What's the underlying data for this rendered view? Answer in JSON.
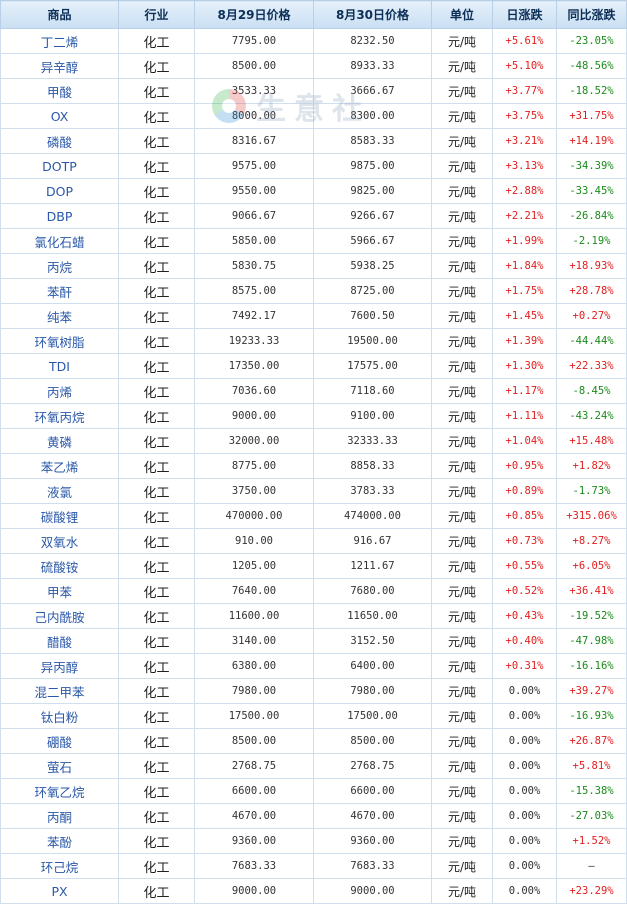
{
  "headers": [
    "商品",
    "行业",
    "8月29日价格",
    "8月30日价格",
    "单位",
    "日涨跌",
    "同比涨跌"
  ],
  "watermark": "生意社",
  "rows": [
    {
      "name": "丁二烯",
      "industry": "化工",
      "p1": "7795.00",
      "p2": "8232.50",
      "unit": "元/吨",
      "daily": "+5.61%",
      "yoy": "-23.05%"
    },
    {
      "name": "异辛醇",
      "industry": "化工",
      "p1": "8500.00",
      "p2": "8933.33",
      "unit": "元/吨",
      "daily": "+5.10%",
      "yoy": "-48.56%"
    },
    {
      "name": "甲酸",
      "industry": "化工",
      "p1": "3533.33",
      "p2": "3666.67",
      "unit": "元/吨",
      "daily": "+3.77%",
      "yoy": "-18.52%"
    },
    {
      "name": "OX",
      "industry": "化工",
      "p1": "8000.00",
      "p2": "8300.00",
      "unit": "元/吨",
      "daily": "+3.75%",
      "yoy": "+31.75%"
    },
    {
      "name": "磷酸",
      "industry": "化工",
      "p1": "8316.67",
      "p2": "8583.33",
      "unit": "元/吨",
      "daily": "+3.21%",
      "yoy": "+14.19%"
    },
    {
      "name": "DOTP",
      "industry": "化工",
      "p1": "9575.00",
      "p2": "9875.00",
      "unit": "元/吨",
      "daily": "+3.13%",
      "yoy": "-34.39%"
    },
    {
      "name": "DOP",
      "industry": "化工",
      "p1": "9550.00",
      "p2": "9825.00",
      "unit": "元/吨",
      "daily": "+2.88%",
      "yoy": "-33.45%"
    },
    {
      "name": "DBP",
      "industry": "化工",
      "p1": "9066.67",
      "p2": "9266.67",
      "unit": "元/吨",
      "daily": "+2.21%",
      "yoy": "-26.84%"
    },
    {
      "name": "氯化石蜡",
      "industry": "化工",
      "p1": "5850.00",
      "p2": "5966.67",
      "unit": "元/吨",
      "daily": "+1.99%",
      "yoy": "-2.19%"
    },
    {
      "name": "丙烷",
      "industry": "化工",
      "p1": "5830.75",
      "p2": "5938.25",
      "unit": "元/吨",
      "daily": "+1.84%",
      "yoy": "+18.93%"
    },
    {
      "name": "苯酐",
      "industry": "化工",
      "p1": "8575.00",
      "p2": "8725.00",
      "unit": "元/吨",
      "daily": "+1.75%",
      "yoy": "+28.78%"
    },
    {
      "name": "纯苯",
      "industry": "化工",
      "p1": "7492.17",
      "p2": "7600.50",
      "unit": "元/吨",
      "daily": "+1.45%",
      "yoy": "+0.27%"
    },
    {
      "name": "环氧树脂",
      "industry": "化工",
      "p1": "19233.33",
      "p2": "19500.00",
      "unit": "元/吨",
      "daily": "+1.39%",
      "yoy": "-44.44%"
    },
    {
      "name": "TDI",
      "industry": "化工",
      "p1": "17350.00",
      "p2": "17575.00",
      "unit": "元/吨",
      "daily": "+1.30%",
      "yoy": "+22.33%"
    },
    {
      "name": "丙烯",
      "industry": "化工",
      "p1": "7036.60",
      "p2": "7118.60",
      "unit": "元/吨",
      "daily": "+1.17%",
      "yoy": "-8.45%"
    },
    {
      "name": "环氧丙烷",
      "industry": "化工",
      "p1": "9000.00",
      "p2": "9100.00",
      "unit": "元/吨",
      "daily": "+1.11%",
      "yoy": "-43.24%"
    },
    {
      "name": "黄磷",
      "industry": "化工",
      "p1": "32000.00",
      "p2": "32333.33",
      "unit": "元/吨",
      "daily": "+1.04%",
      "yoy": "+15.48%"
    },
    {
      "name": "苯乙烯",
      "industry": "化工",
      "p1": "8775.00",
      "p2": "8858.33",
      "unit": "元/吨",
      "daily": "+0.95%",
      "yoy": "+1.82%"
    },
    {
      "name": "液氯",
      "industry": "化工",
      "p1": "3750.00",
      "p2": "3783.33",
      "unit": "元/吨",
      "daily": "+0.89%",
      "yoy": "-1.73%"
    },
    {
      "name": "碳酸锂",
      "industry": "化工",
      "p1": "470000.00",
      "p2": "474000.00",
      "unit": "元/吨",
      "daily": "+0.85%",
      "yoy": "+315.06%"
    },
    {
      "name": "双氧水",
      "industry": "化工",
      "p1": "910.00",
      "p2": "916.67",
      "unit": "元/吨",
      "daily": "+0.73%",
      "yoy": "+8.27%"
    },
    {
      "name": "硫酸铵",
      "industry": "化工",
      "p1": "1205.00",
      "p2": "1211.67",
      "unit": "元/吨",
      "daily": "+0.55%",
      "yoy": "+6.05%"
    },
    {
      "name": "甲苯",
      "industry": "化工",
      "p1": "7640.00",
      "p2": "7680.00",
      "unit": "元/吨",
      "daily": "+0.52%",
      "yoy": "+36.41%"
    },
    {
      "name": "己内酰胺",
      "industry": "化工",
      "p1": "11600.00",
      "p2": "11650.00",
      "unit": "元/吨",
      "daily": "+0.43%",
      "yoy": "-19.52%"
    },
    {
      "name": "醋酸",
      "industry": "化工",
      "p1": "3140.00",
      "p2": "3152.50",
      "unit": "元/吨",
      "daily": "+0.40%",
      "yoy": "-47.98%"
    },
    {
      "name": "异丙醇",
      "industry": "化工",
      "p1": "6380.00",
      "p2": "6400.00",
      "unit": "元/吨",
      "daily": "+0.31%",
      "yoy": "-16.16%"
    },
    {
      "name": "混二甲苯",
      "industry": "化工",
      "p1": "7980.00",
      "p2": "7980.00",
      "unit": "元/吨",
      "daily": "0.00%",
      "yoy": "+39.27%"
    },
    {
      "name": "钛白粉",
      "industry": "化工",
      "p1": "17500.00",
      "p2": "17500.00",
      "unit": "元/吨",
      "daily": "0.00%",
      "yoy": "-16.93%"
    },
    {
      "name": "硼酸",
      "industry": "化工",
      "p1": "8500.00",
      "p2": "8500.00",
      "unit": "元/吨",
      "daily": "0.00%",
      "yoy": "+26.87%"
    },
    {
      "name": "萤石",
      "industry": "化工",
      "p1": "2768.75",
      "p2": "2768.75",
      "unit": "元/吨",
      "daily": "0.00%",
      "yoy": "+5.81%"
    },
    {
      "name": "环氧乙烷",
      "industry": "化工",
      "p1": "6600.00",
      "p2": "6600.00",
      "unit": "元/吨",
      "daily": "0.00%",
      "yoy": "-15.38%"
    },
    {
      "name": "丙酮",
      "industry": "化工",
      "p1": "4670.00",
      "p2": "4670.00",
      "unit": "元/吨",
      "daily": "0.00%",
      "yoy": "-27.03%"
    },
    {
      "name": "苯酚",
      "industry": "化工",
      "p1": "9360.00",
      "p2": "9360.00",
      "unit": "元/吨",
      "daily": "0.00%",
      "yoy": "+1.52%"
    },
    {
      "name": "环己烷",
      "industry": "化工",
      "p1": "7683.33",
      "p2": "7683.33",
      "unit": "元/吨",
      "daily": "0.00%",
      "yoy": "—"
    },
    {
      "name": "PX",
      "industry": "化工",
      "p1": "9000.00",
      "p2": "9000.00",
      "unit": "元/吨",
      "daily": "0.00%",
      "yoy": "+23.29%"
    }
  ]
}
